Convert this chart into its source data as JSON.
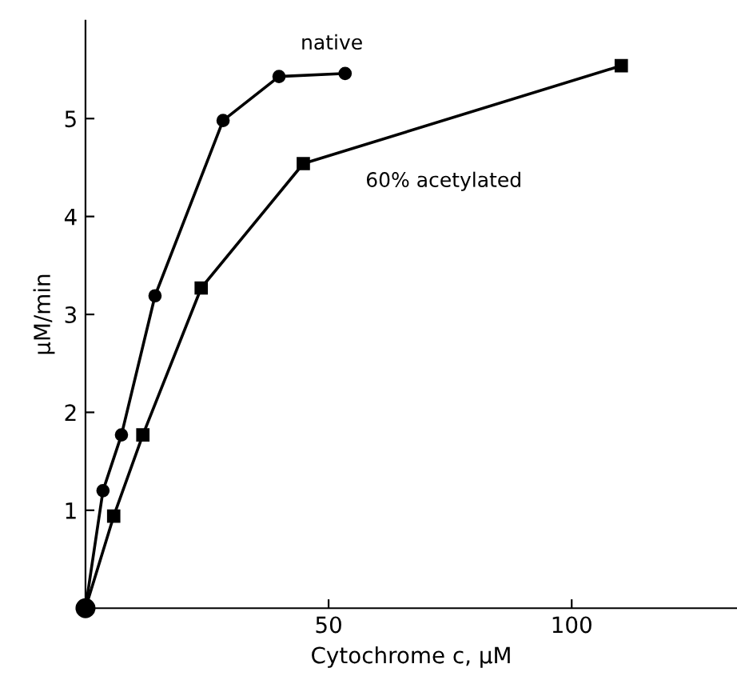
{
  "chart_data": {
    "type": "line",
    "xlabel": "Cytochrome c, μM",
    "ylabel": "μM/min",
    "xlim": [
      0,
      134
    ],
    "ylim": [
      0,
      6.0
    ],
    "xticks": [
      50,
      100
    ],
    "yticks": [
      1,
      2,
      3,
      4,
      5
    ],
    "grid": false,
    "legend": false,
    "line_style": "solid",
    "series": [
      {
        "name": "native",
        "color": "#000000",
        "marker": "circle",
        "x": [
          0,
          3.6,
          7.4,
          14.3,
          28.3,
          39.8,
          53.4
        ],
        "values": [
          0,
          1.2,
          1.77,
          3.19,
          4.98,
          5.43,
          5.46
        ]
      },
      {
        "name": "60% acetylated",
        "color": "#000000",
        "marker": "square",
        "x": [
          0,
          5.8,
          11.8,
          23.8,
          44.8,
          110.2
        ],
        "values": [
          0,
          0.94,
          1.77,
          3.27,
          4.54,
          5.54
        ]
      },
      {
        "type": "scatter",
        "color": "#000000",
        "marker": "circle",
        "x": [
          0
        ],
        "values": [
          0
        ]
      }
    ]
  }
}
